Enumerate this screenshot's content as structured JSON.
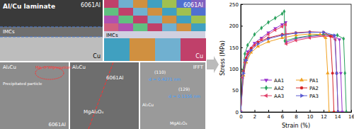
{
  "chart_data": {
    "type": "line",
    "x_label": "Strain (%)",
    "y_label": "Stress (MPa)",
    "xlim": [
      0,
      16
    ],
    "xticks": [
      0,
      2,
      4,
      6,
      8,
      10,
      12,
      14,
      16
    ],
    "ylim": [
      0,
      250
    ],
    "yticks": [
      0,
      50,
      100,
      150,
      200,
      250
    ],
    "legend": "lower center",
    "grid": false,
    "series": [
      {
        "name": "AA1",
        "color": "#9932cc",
        "marker": "triangle-down",
        "line_style": "solid",
        "x": [
          0,
          0.3,
          0.6,
          1,
          2,
          3,
          4,
          5,
          6,
          6.5,
          6.6,
          8,
          10,
          12,
          13.5,
          14.3,
          14.5,
          14.7
        ],
        "values": [
          0,
          85,
          120,
          140,
          160,
          172,
          184,
          194,
          203,
          208,
          162,
          170,
          175,
          178,
          176,
          168,
          90,
          0
        ]
      },
      {
        "name": "AA2",
        "color": "#2ca25f",
        "marker": "diamond",
        "line_style": "solid",
        "x": [
          0,
          0.3,
          0.6,
          1,
          2,
          3,
          4,
          5,
          6,
          6.3,
          6.4,
          8,
          10,
          12,
          14,
          14.9,
          15.1,
          15.3
        ],
        "values": [
          0,
          95,
          135,
          155,
          180,
          195,
          208,
          218,
          228,
          233,
          165,
          172,
          177,
          180,
          178,
          170,
          90,
          0
        ]
      },
      {
        "name": "AA3",
        "color": "#e0406a",
        "marker": "triangle-left",
        "line_style": "solid",
        "x": [
          0,
          0.3,
          0.6,
          1,
          2,
          3,
          4,
          5,
          6,
          6.5,
          6.6,
          8,
          10,
          12,
          13.2,
          13.7,
          13.9,
          14.1
        ],
        "values": [
          0,
          80,
          115,
          135,
          155,
          168,
          180,
          190,
          198,
          203,
          158,
          166,
          172,
          176,
          175,
          168,
          90,
          0
        ]
      },
      {
        "name": "PA1",
        "color": "#f0a020",
        "marker": "triangle-up",
        "line_style": "solid",
        "x": [
          0,
          0.4,
          0.8,
          1.5,
          2.5,
          4,
          6,
          8,
          10,
          11.5,
          12.3,
          12.6,
          12.8
        ],
        "values": [
          0,
          85,
          115,
          138,
          152,
          163,
          172,
          178,
          181,
          180,
          172,
          90,
          0
        ]
      },
      {
        "name": "PA2",
        "color": "#d62728",
        "marker": "circle",
        "line_style": "solid",
        "x": [
          0,
          0.4,
          0.8,
          1.5,
          2.5,
          4,
          6,
          8,
          10,
          12,
          13,
          13.3,
          13.5
        ],
        "values": [
          0,
          95,
          125,
          148,
          162,
          172,
          180,
          184,
          186,
          185,
          176,
          90,
          0
        ]
      },
      {
        "name": "PA3",
        "color": "#5a5ad2",
        "marker": "triangle-right",
        "line_style": "solid",
        "x": [
          0,
          0.4,
          0.8,
          1.5,
          2.5,
          4,
          6,
          8,
          10,
          12,
          13.6,
          13.9,
          14.1
        ],
        "values": [
          0,
          90,
          120,
          143,
          158,
          170,
          178,
          183,
          185,
          185,
          178,
          90,
          0
        ]
      }
    ]
  },
  "panels": [
    {
      "labels": [
        "Al/Cu laminate",
        "6061Al",
        "IMCs",
        "Cu"
      ]
    },
    {
      "labels": [
        "6061Al",
        "IMCs",
        "Cu"
      ]
    },
    {
      "labels": [
        "Al₂Cu",
        "Mg, O segregation",
        "Precipitated particle",
        "6061Al"
      ]
    },
    {
      "labels": [
        "Al₂Cu",
        "6061Al",
        "MgAl₂O₄"
      ]
    },
    {
      "labels": [
        "IFFT",
        "(110)",
        "d = 0.4271 nm",
        "Al₂Cu",
        "(129)",
        "d = 0.1156 nm",
        "MgAl₂O₄"
      ]
    }
  ]
}
